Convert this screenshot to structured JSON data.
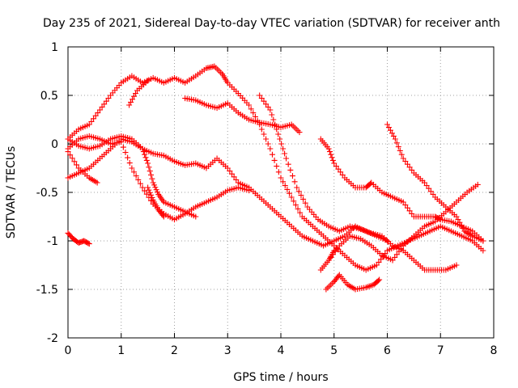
{
  "chart_data": {
    "type": "scatter",
    "title": "Day 235 of 2021, Sidereal Day-to-day VTEC variation (SDTVAR) for receiver anth",
    "xlabel": "GPS time / hours",
    "ylabel": "SDTVAR / TECUs",
    "xlim": [
      0,
      8
    ],
    "ylim": [
      -2,
      1
    ],
    "xticks": [
      0,
      1,
      2,
      3,
      4,
      5,
      6,
      7,
      8
    ],
    "xtick_labels": [
      "0",
      "1",
      "2",
      "3",
      "4",
      "5",
      "6",
      "7",
      "8"
    ],
    "yticks": [
      -2,
      -1.5,
      -1,
      -0.5,
      0,
      0.5,
      1
    ],
    "ytick_labels": [
      "-2",
      "-1.5",
      "-1",
      "-0.5",
      "0",
      "0.5",
      "1"
    ],
    "grid": true,
    "marker": "+",
    "color": "#ff0000",
    "series": [
      {
        "name": "arc-1",
        "points": [
          [
            0.0,
            0.05
          ],
          [
            0.2,
            0.15
          ],
          [
            0.4,
            0.2
          ],
          [
            0.6,
            0.35
          ],
          [
            0.8,
            0.5
          ],
          [
            1.0,
            0.63
          ],
          [
            1.2,
            0.7
          ],
          [
            1.4,
            0.63
          ],
          [
            1.6,
            0.68
          ],
          [
            1.8,
            0.63
          ],
          [
            2.0,
            0.68
          ],
          [
            2.2,
            0.63
          ],
          [
            2.4,
            0.7
          ],
          [
            2.6,
            0.78
          ],
          [
            2.75,
            0.8
          ],
          [
            2.9,
            0.72
          ],
          [
            3.0,
            0.63
          ],
          [
            3.2,
            0.52
          ],
          [
            3.4,
            0.4
          ],
          [
            3.6,
            0.2
          ],
          [
            3.8,
            -0.05
          ],
          [
            4.0,
            -0.35
          ],
          [
            4.2,
            -0.55
          ],
          [
            4.4,
            -0.75
          ],
          [
            4.6,
            -0.85
          ],
          [
            4.8,
            -0.95
          ],
          [
            5.0,
            -1.05
          ],
          [
            5.2,
            -1.15
          ],
          [
            5.4,
            -1.25
          ],
          [
            5.6,
            -1.3
          ],
          [
            5.8,
            -1.25
          ],
          [
            6.0,
            -1.1
          ],
          [
            6.2,
            -1.05
          ],
          [
            6.4,
            -1.0
          ],
          [
            6.6,
            -0.95
          ],
          [
            6.8,
            -0.9
          ],
          [
            7.0,
            -0.85
          ],
          [
            7.2,
            -0.9
          ],
          [
            7.4,
            -0.95
          ],
          [
            7.6,
            -1.0
          ],
          [
            7.8,
            -1.1
          ]
        ]
      },
      {
        "name": "arc-2",
        "points": [
          [
            1.15,
            0.4
          ],
          [
            1.3,
            0.55
          ],
          [
            1.5,
            0.65
          ]
        ]
      },
      {
        "name": "arc-3",
        "points": [
          [
            2.2,
            0.47
          ],
          [
            2.4,
            0.45
          ],
          [
            2.6,
            0.4
          ],
          [
            2.8,
            0.37
          ],
          [
            3.0,
            0.42
          ],
          [
            3.2,
            0.32
          ],
          [
            3.4,
            0.25
          ],
          [
            3.6,
            0.22
          ],
          [
            3.8,
            0.2
          ],
          [
            4.0,
            0.17
          ],
          [
            4.2,
            0.2
          ],
          [
            4.35,
            0.12
          ]
        ]
      },
      {
        "name": "arc-4",
        "points": [
          [
            3.6,
            0.5
          ],
          [
            3.8,
            0.35
          ],
          [
            3.95,
            0.1
          ],
          [
            4.1,
            -0.15
          ],
          [
            4.3,
            -0.45
          ],
          [
            4.5,
            -0.65
          ],
          [
            4.7,
            -0.78
          ],
          [
            4.9,
            -0.85
          ],
          [
            5.1,
            -0.9
          ],
          [
            5.3,
            -0.85
          ],
          [
            5.5,
            -0.88
          ],
          [
            5.7,
            -0.92
          ],
          [
            5.9,
            -0.95
          ],
          [
            6.1,
            -1.05
          ],
          [
            6.3,
            -1.1
          ],
          [
            6.5,
            -1.2
          ],
          [
            6.7,
            -1.3
          ],
          [
            6.9,
            -1.3
          ],
          [
            7.1,
            -1.3
          ],
          [
            7.3,
            -1.25
          ]
        ]
      },
      {
        "name": "arc-5",
        "points": [
          [
            0.0,
            -0.08
          ],
          [
            0.2,
            -0.25
          ],
          [
            0.4,
            -0.35
          ],
          [
            0.55,
            -0.4
          ]
        ]
      },
      {
        "name": "arc-6",
        "points": [
          [
            0.0,
            -0.35
          ],
          [
            0.2,
            -0.3
          ],
          [
            0.4,
            -0.25
          ],
          [
            0.6,
            -0.15
          ],
          [
            0.8,
            -0.05
          ],
          [
            1.0,
            0.05
          ],
          [
            1.2,
            0.02
          ],
          [
            1.4,
            -0.05
          ],
          [
            1.6,
            -0.1
          ],
          [
            1.8,
            -0.12
          ],
          [
            2.0,
            -0.18
          ],
          [
            2.2,
            -0.22
          ],
          [
            2.4,
            -0.2
          ],
          [
            2.6,
            -0.25
          ],
          [
            2.8,
            -0.15
          ],
          [
            3.0,
            -0.25
          ],
          [
            3.2,
            -0.4
          ],
          [
            3.4,
            -0.45
          ],
          [
            3.6,
            -0.55
          ],
          [
            3.8,
            -0.65
          ],
          [
            4.0,
            -0.75
          ],
          [
            4.2,
            -0.85
          ],
          [
            4.4,
            -0.95
          ],
          [
            4.6,
            -1.0
          ],
          [
            4.8,
            -1.05
          ],
          [
            5.0,
            -1.0
          ],
          [
            5.2,
            -0.95
          ],
          [
            5.4,
            -0.85
          ],
          [
            5.6,
            -0.9
          ],
          [
            5.8,
            -0.95
          ],
          [
            6.0,
            -1.0
          ]
        ]
      },
      {
        "name": "arc-7",
        "points": [
          [
            0.0,
            -0.05
          ],
          [
            0.2,
            0.05
          ],
          [
            0.4,
            0.08
          ],
          [
            0.6,
            0.05
          ],
          [
            0.8,
            0.0
          ],
          [
            1.0,
            0.02
          ],
          [
            1.2,
            -0.25
          ],
          [
            1.4,
            -0.45
          ],
          [
            1.6,
            -0.62
          ],
          [
            1.8,
            -0.72
          ],
          [
            2.0,
            -0.78
          ],
          [
            2.2,
            -0.72
          ],
          [
            2.4,
            -0.65
          ],
          [
            2.6,
            -0.6
          ],
          [
            2.8,
            -0.55
          ],
          [
            3.0,
            -0.48
          ],
          [
            3.2,
            -0.45
          ],
          [
            3.4,
            -0.48
          ]
        ]
      },
      {
        "name": "arc-8",
        "points": [
          [
            0.0,
            0.05
          ],
          [
            0.2,
            -0.02
          ],
          [
            0.4,
            -0.05
          ],
          [
            0.6,
            -0.02
          ],
          [
            0.8,
            0.05
          ],
          [
            1.0,
            0.08
          ],
          [
            1.2,
            0.05
          ],
          [
            1.4,
            -0.05
          ],
          [
            1.5,
            -0.2
          ],
          [
            1.6,
            -0.4
          ],
          [
            1.7,
            -0.52
          ],
          [
            1.8,
            -0.6
          ],
          [
            2.0,
            -0.65
          ],
          [
            2.2,
            -0.7
          ],
          [
            2.4,
            -0.75
          ]
        ]
      },
      {
        "name": "arc-9",
        "points": [
          [
            1.5,
            -0.45
          ],
          [
            1.6,
            -0.58
          ],
          [
            1.7,
            -0.68
          ],
          [
            1.8,
            -0.75
          ]
        ]
      },
      {
        "name": "arc-10",
        "points": [
          [
            0.0,
            -0.92
          ],
          [
            0.1,
            -0.98
          ],
          [
            0.2,
            -1.02
          ],
          [
            0.3,
            -1.0
          ],
          [
            0.4,
            -1.03
          ]
        ]
      },
      {
        "name": "arc-11",
        "points": [
          [
            4.75,
            0.05
          ],
          [
            4.9,
            -0.05
          ],
          [
            5.0,
            -0.2
          ],
          [
            5.2,
            -0.35
          ],
          [
            5.4,
            -0.45
          ],
          [
            5.6,
            -0.45
          ],
          [
            5.7,
            -0.4
          ],
          [
            5.9,
            -0.5
          ],
          [
            6.1,
            -0.55
          ],
          [
            6.3,
            -0.6
          ],
          [
            6.5,
            -0.75
          ],
          [
            6.7,
            -0.75
          ],
          [
            6.9,
            -0.75
          ],
          [
            7.0,
            -0.78
          ],
          [
            7.2,
            -0.8
          ],
          [
            7.4,
            -0.85
          ],
          [
            7.6,
            -0.9
          ],
          [
            7.8,
            -1.0
          ]
        ]
      },
      {
        "name": "arc-12",
        "points": [
          [
            6.0,
            0.2
          ],
          [
            6.15,
            0.05
          ],
          [
            6.3,
            -0.15
          ],
          [
            6.5,
            -0.3
          ],
          [
            6.7,
            -0.4
          ],
          [
            6.9,
            -0.55
          ],
          [
            7.1,
            -0.65
          ],
          [
            7.3,
            -0.75
          ],
          [
            7.45,
            -0.9
          ],
          [
            7.6,
            -0.95
          ],
          [
            7.8,
            -1.0
          ]
        ]
      },
      {
        "name": "arc-13",
        "points": [
          [
            4.9,
            -1.2
          ],
          [
            5.1,
            -1.05
          ],
          [
            5.3,
            -0.95
          ],
          [
            5.5,
            -0.98
          ],
          [
            5.7,
            -1.05
          ],
          [
            5.9,
            -1.15
          ],
          [
            6.1,
            -1.2
          ],
          [
            6.3,
            -1.05
          ],
          [
            6.5,
            -0.95
          ],
          [
            6.7,
            -0.85
          ],
          [
            6.9,
            -0.8
          ],
          [
            7.1,
            -0.7
          ],
          [
            7.3,
            -0.6
          ],
          [
            7.5,
            -0.5
          ],
          [
            7.7,
            -0.42
          ]
        ]
      },
      {
        "name": "arc-14",
        "points": [
          [
            4.75,
            -1.3
          ],
          [
            4.9,
            -1.2
          ],
          [
            5.0,
            -1.1
          ]
        ]
      },
      {
        "name": "arc-15",
        "points": [
          [
            4.85,
            -1.5
          ],
          [
            5.0,
            -1.42
          ],
          [
            5.1,
            -1.35
          ],
          [
            5.25,
            -1.45
          ],
          [
            5.4,
            -1.5
          ],
          [
            5.6,
            -1.48
          ],
          [
            5.75,
            -1.45
          ],
          [
            5.85,
            -1.4
          ]
        ]
      }
    ]
  }
}
